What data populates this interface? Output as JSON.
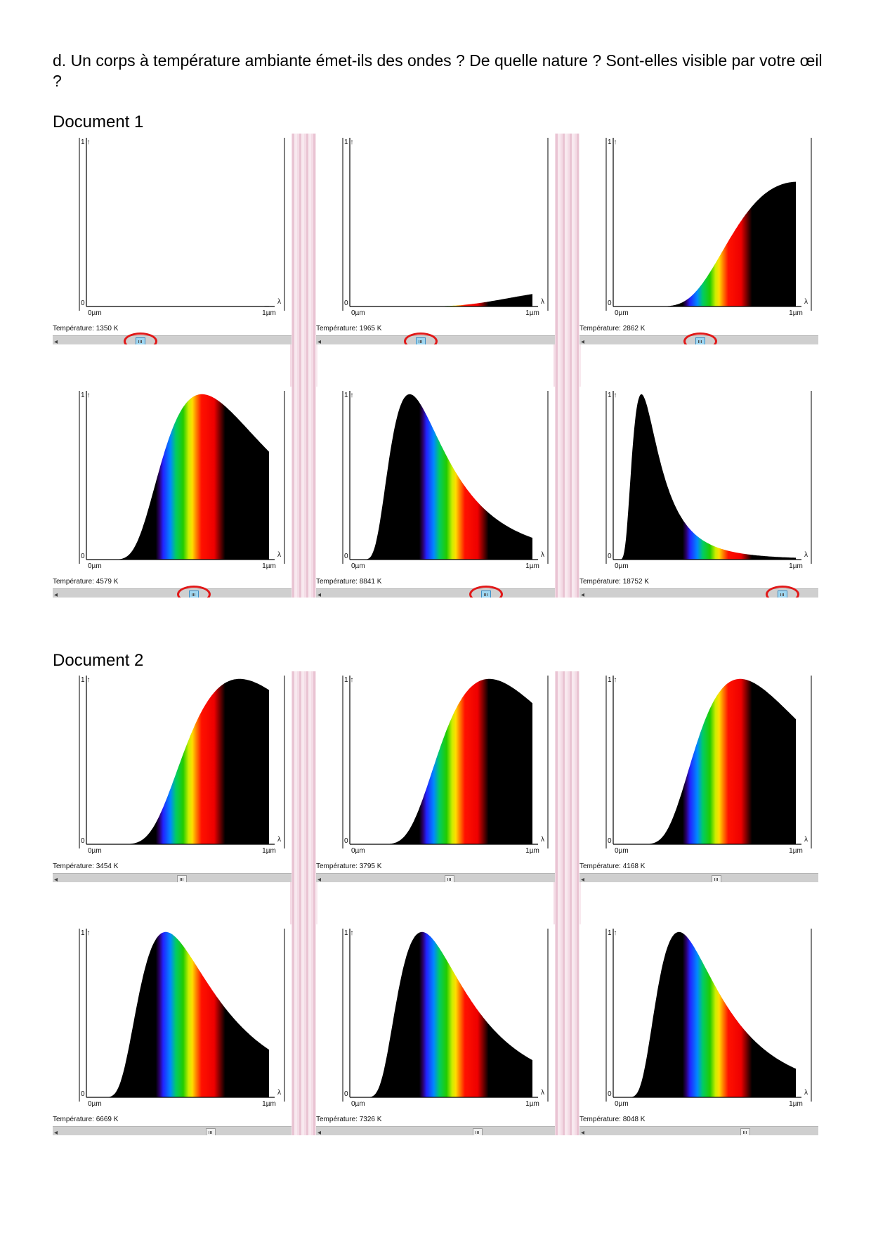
{
  "question": "d. Un corps à température ambiante émet-ils des ondes ? De quelle nature ? Sont-elles visible par votre œil ?",
  "documents": [
    {
      "title": "Document 1",
      "panels": [
        {
          "temperature_label": "Température: 1350 K",
          "temperature_K": 1350,
          "marker": true
        },
        {
          "temperature_label": "Température: 1965 K",
          "temperature_K": 1965,
          "marker": true
        },
        {
          "temperature_label": "Température: 2862 K",
          "temperature_K": 2862,
          "marker": true
        },
        {
          "temperature_label": "Température: 4579 K",
          "temperature_K": 4579,
          "marker": true
        },
        {
          "temperature_label": "Température: 8841 K",
          "temperature_K": 8841,
          "marker": true
        },
        {
          "temperature_label": "Température: 18752 K",
          "temperature_K": 18752,
          "marker": true
        }
      ]
    },
    {
      "title": "Document 2",
      "panels": [
        {
          "temperature_label": "Température: 3454 K",
          "temperature_K": 3454,
          "marker": false
        },
        {
          "temperature_label": "Température: 3795 K",
          "temperature_K": 3795,
          "marker": false
        },
        {
          "temperature_label": "Température: 4168 K",
          "temperature_K": 4168,
          "marker": false
        },
        {
          "temperature_label": "Température: 6669 K",
          "temperature_K": 6669,
          "marker": false
        },
        {
          "temperature_label": "Température: 7326 K",
          "temperature_K": 7326,
          "marker": false
        },
        {
          "temperature_label": "Température: 8048 K",
          "temperature_K": 8048,
          "marker": false
        }
      ]
    }
  ],
  "axis": {
    "y_top": "1",
    "y_bottom": "0",
    "x_start": "0µm",
    "x_end": "1µm",
    "x_symbol": "λ",
    "x_range_um": [
      0,
      1
    ],
    "y_range": [
      0,
      1
    ]
  },
  "slider_ticks": [
    "300K",
    "1000K",
    "3000K",
    "10000K",
    "30000K"
  ],
  "slider_range_K": [
    300,
    30000
  ],
  "colors": {
    "marker": "#e01818",
    "thumb_selected": "#9fd6f0",
    "curve_fill": "#000000",
    "slider_track": "#cfcfcf"
  },
  "chart_data": {
    "type": "area",
    "xlabel": "λ",
    "xlim": [
      0,
      1
    ],
    "ylim": [
      0,
      1
    ],
    "description_series": "Planck black-body spectral curves, normalized per panel, visible band rendered as rainbow",
    "temperatures_K": [
      1350,
      1965,
      2862,
      4579,
      8841,
      18752,
      3454,
      3795,
      4168,
      6669,
      7326,
      8048
    ]
  }
}
